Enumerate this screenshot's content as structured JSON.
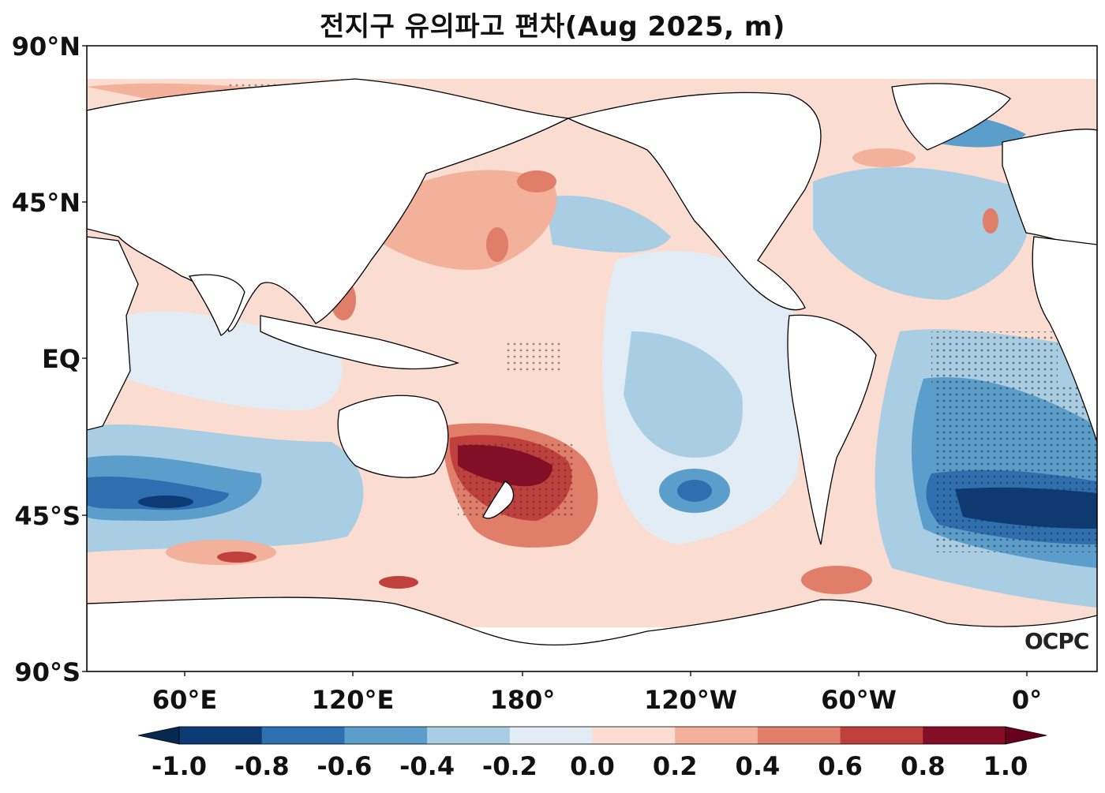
{
  "title": "전지구 유의파고 편차(Aug 2025, m)",
  "lat_labels": [
    "90°N",
    "45°N",
    "EQ",
    "45°S",
    "90°S"
  ],
  "lon_labels": [
    "60°E",
    "120°E",
    "180°",
    "120°W",
    "60°W",
    "0°"
  ],
  "logo_text": "OCPC",
  "colorbar": {
    "ticks": [
      "-1.0",
      "-0.8",
      "-0.6",
      "-0.4",
      "-0.2",
      "0.0",
      "0.2",
      "0.4",
      "0.6",
      "0.8",
      "1.0"
    ],
    "colors": [
      "#0b3a75",
      "#2e6fb0",
      "#5b9ecb",
      "#a9cde3",
      "#e2ecf4",
      "#faddd0",
      "#f3b09a",
      "#e07e69",
      "#c0403e",
      "#850e26"
    ],
    "under_color": "#06294f",
    "over_color": "#67001f"
  },
  "colors": {
    "land": "#ffffff",
    "coast": "#000000",
    "frame": "#000000"
  }
}
